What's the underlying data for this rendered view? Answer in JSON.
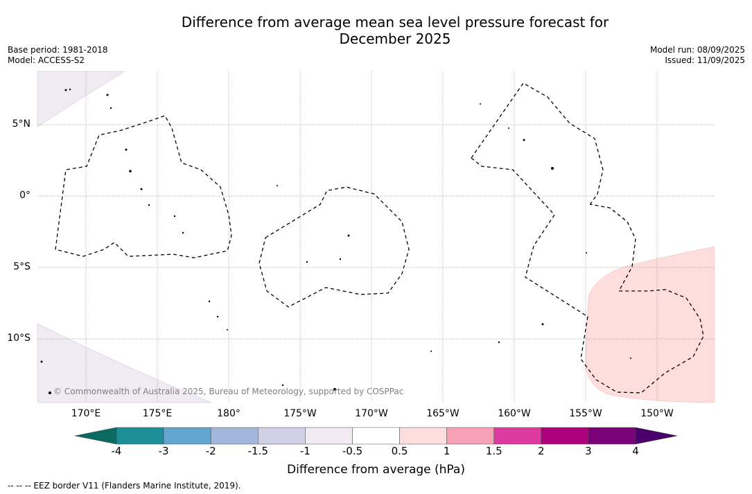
{
  "header": {
    "title_line1": "Difference from average mean sea level pressure forecast for",
    "title_line2": "December 2025",
    "base_period": "Base period: 1981-2018",
    "model": "Model: ACCESS-S2",
    "model_run": "Model run: 08/09/2025",
    "issued": "Issued: 11/09/2025"
  },
  "map": {
    "lat_labels": [
      "5°N",
      "0°",
      "5°S",
      "10°S"
    ],
    "lon_labels": [
      "170°E",
      "175°E",
      "180°",
      "175°W",
      "170°W",
      "165°W",
      "160°W",
      "155°W",
      "150°W"
    ],
    "copyright": "© Commonwealth of Australia 2025, Bureau of Meteorology, supported by COSPPac",
    "colors": {
      "ocean": "#ffffff",
      "positive_anomaly": "#fddedd",
      "negative_anomaly": "#f0eaf2",
      "grid": "#808080",
      "eez": "#000000"
    }
  },
  "colorbar": {
    "ticks": [
      "-4",
      "-3",
      "-2",
      "-1.5",
      "-1",
      "-0.5",
      "0.5",
      "1",
      "1.5",
      "2",
      "3",
      "4"
    ],
    "colors": [
      "#0b6b63",
      "#1d8f96",
      "#62a6d0",
      "#a3b7dc",
      "#cfd0e6",
      "#f1eaf3",
      "#ffffff",
      "#fddedd",
      "#f7a0b6",
      "#dd3a9f",
      "#ae017e",
      "#7a0177",
      "#49006a"
    ],
    "title": "Difference from average (hPa)"
  },
  "footnote": "--  --  -- EEZ border V11 (Flanders Marine Institute, 2019)."
}
